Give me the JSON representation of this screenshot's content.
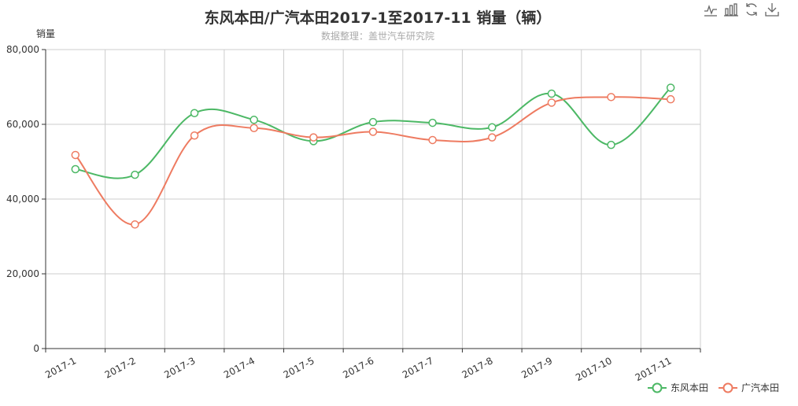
{
  "toolbox": {
    "icons": [
      "line-chart-icon",
      "bar-chart-icon",
      "restore-icon",
      "download-icon"
    ]
  },
  "colors": {
    "series1": "#4cb865",
    "series2": "#ee7b61",
    "grid": "#cccccc",
    "axis": "#333333"
  },
  "chart_data": {
    "type": "line",
    "title": "东风本田/广汽本田2017-1至2017-11 销量（辆）",
    "subtitle": "数据整理：盖世汽车研究院",
    "xlabel": "",
    "ylabel": "销量",
    "ylim": [
      0,
      80000
    ],
    "yticks": [
      0,
      20000,
      40000,
      60000,
      80000
    ],
    "ytick_labels": [
      "0",
      "20,000",
      "40,000",
      "60,000",
      "80,000"
    ],
    "grid": true,
    "legend_position": "bottom-right",
    "categories": [
      "2017-1",
      "2017-2",
      "2017-3",
      "2017-4",
      "2017-5",
      "2017-6",
      "2017-7",
      "2017-8",
      "2017-9",
      "2017-10",
      "2017-11"
    ],
    "series": [
      {
        "name": "东风本田",
        "color": "#4cb865",
        "values": [
          48000,
          46500,
          63000,
          61200,
          55500,
          60600,
          60400,
          59200,
          68200,
          54500,
          69800
        ]
      },
      {
        "name": "广汽本田",
        "color": "#ee7b61",
        "values": [
          51800,
          33200,
          57000,
          59000,
          56500,
          58000,
          55800,
          56500,
          65800,
          67300,
          66700
        ]
      }
    ]
  }
}
